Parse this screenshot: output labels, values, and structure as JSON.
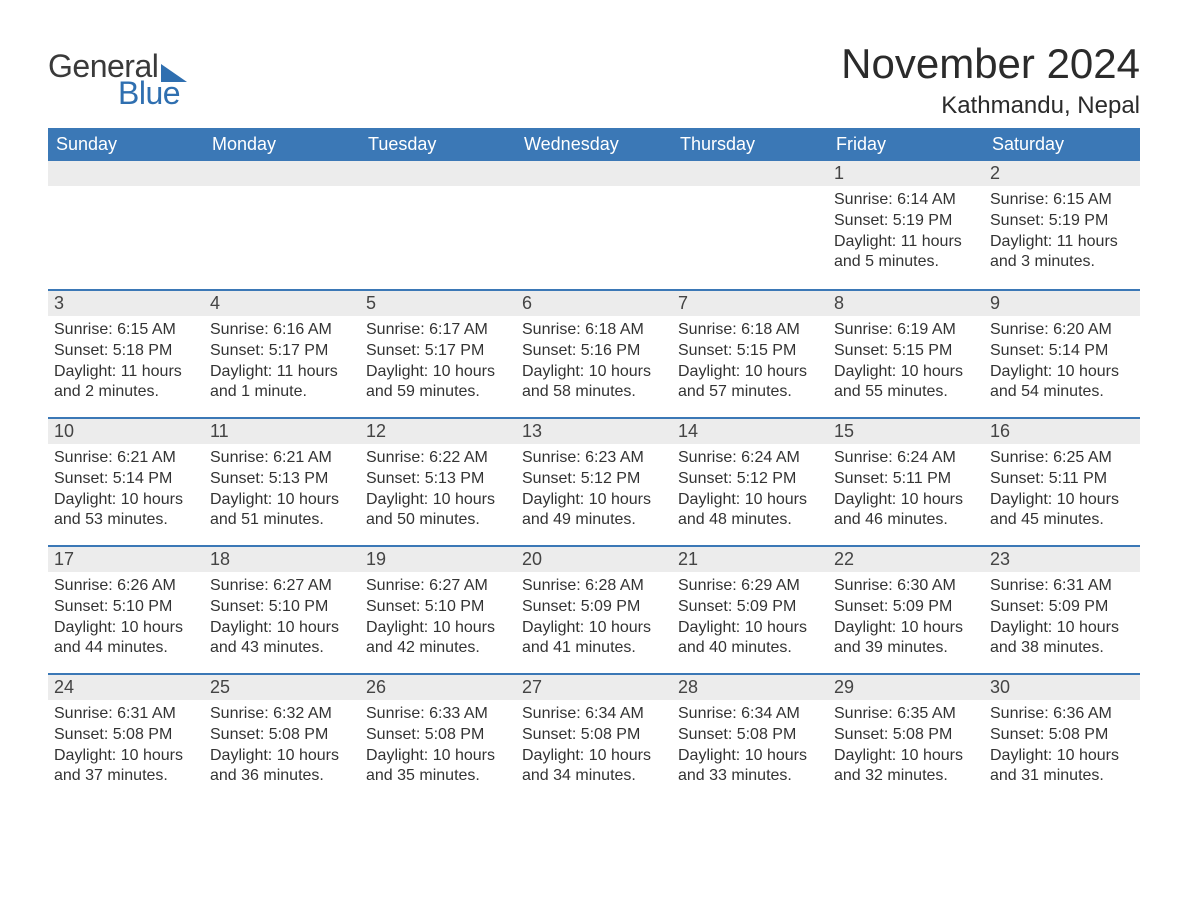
{
  "brand": {
    "word1": "General",
    "word2": "Blue",
    "accent_color": "#2f6fb0",
    "text_color": "#3a3a3a"
  },
  "title": "November 2024",
  "location": "Kathmandu, Nepal",
  "colors": {
    "header_bg": "#3b78b6",
    "header_text": "#ffffff",
    "daynum_bg": "#ececec",
    "daynum_text": "#444444",
    "body_text": "#333333",
    "row_divider": "#3b78b6",
    "page_bg": "#ffffff"
  },
  "typography": {
    "title_fontsize": 42,
    "location_fontsize": 24,
    "weekday_fontsize": 18,
    "daynum_fontsize": 18,
    "content_fontsize": 16
  },
  "weekdays": [
    "Sunday",
    "Monday",
    "Tuesday",
    "Wednesday",
    "Thursday",
    "Friday",
    "Saturday"
  ],
  "weeks": [
    [
      null,
      null,
      null,
      null,
      null,
      {
        "day": "1",
        "sunrise": "Sunrise: 6:14 AM",
        "sunset": "Sunset: 5:19 PM",
        "daylight1": "Daylight: 11 hours",
        "daylight2": "and 5 minutes."
      },
      {
        "day": "2",
        "sunrise": "Sunrise: 6:15 AM",
        "sunset": "Sunset: 5:19 PM",
        "daylight1": "Daylight: 11 hours",
        "daylight2": "and 3 minutes."
      }
    ],
    [
      {
        "day": "3",
        "sunrise": "Sunrise: 6:15 AM",
        "sunset": "Sunset: 5:18 PM",
        "daylight1": "Daylight: 11 hours",
        "daylight2": "and 2 minutes."
      },
      {
        "day": "4",
        "sunrise": "Sunrise: 6:16 AM",
        "sunset": "Sunset: 5:17 PM",
        "daylight1": "Daylight: 11 hours",
        "daylight2": "and 1 minute."
      },
      {
        "day": "5",
        "sunrise": "Sunrise: 6:17 AM",
        "sunset": "Sunset: 5:17 PM",
        "daylight1": "Daylight: 10 hours",
        "daylight2": "and 59 minutes."
      },
      {
        "day": "6",
        "sunrise": "Sunrise: 6:18 AM",
        "sunset": "Sunset: 5:16 PM",
        "daylight1": "Daylight: 10 hours",
        "daylight2": "and 58 minutes."
      },
      {
        "day": "7",
        "sunrise": "Sunrise: 6:18 AM",
        "sunset": "Sunset: 5:15 PM",
        "daylight1": "Daylight: 10 hours",
        "daylight2": "and 57 minutes."
      },
      {
        "day": "8",
        "sunrise": "Sunrise: 6:19 AM",
        "sunset": "Sunset: 5:15 PM",
        "daylight1": "Daylight: 10 hours",
        "daylight2": "and 55 minutes."
      },
      {
        "day": "9",
        "sunrise": "Sunrise: 6:20 AM",
        "sunset": "Sunset: 5:14 PM",
        "daylight1": "Daylight: 10 hours",
        "daylight2": "and 54 minutes."
      }
    ],
    [
      {
        "day": "10",
        "sunrise": "Sunrise: 6:21 AM",
        "sunset": "Sunset: 5:14 PM",
        "daylight1": "Daylight: 10 hours",
        "daylight2": "and 53 minutes."
      },
      {
        "day": "11",
        "sunrise": "Sunrise: 6:21 AM",
        "sunset": "Sunset: 5:13 PM",
        "daylight1": "Daylight: 10 hours",
        "daylight2": "and 51 minutes."
      },
      {
        "day": "12",
        "sunrise": "Sunrise: 6:22 AM",
        "sunset": "Sunset: 5:13 PM",
        "daylight1": "Daylight: 10 hours",
        "daylight2": "and 50 minutes."
      },
      {
        "day": "13",
        "sunrise": "Sunrise: 6:23 AM",
        "sunset": "Sunset: 5:12 PM",
        "daylight1": "Daylight: 10 hours",
        "daylight2": "and 49 minutes."
      },
      {
        "day": "14",
        "sunrise": "Sunrise: 6:24 AM",
        "sunset": "Sunset: 5:12 PM",
        "daylight1": "Daylight: 10 hours",
        "daylight2": "and 48 minutes."
      },
      {
        "day": "15",
        "sunrise": "Sunrise: 6:24 AM",
        "sunset": "Sunset: 5:11 PM",
        "daylight1": "Daylight: 10 hours",
        "daylight2": "and 46 minutes."
      },
      {
        "day": "16",
        "sunrise": "Sunrise: 6:25 AM",
        "sunset": "Sunset: 5:11 PM",
        "daylight1": "Daylight: 10 hours",
        "daylight2": "and 45 minutes."
      }
    ],
    [
      {
        "day": "17",
        "sunrise": "Sunrise: 6:26 AM",
        "sunset": "Sunset: 5:10 PM",
        "daylight1": "Daylight: 10 hours",
        "daylight2": "and 44 minutes."
      },
      {
        "day": "18",
        "sunrise": "Sunrise: 6:27 AM",
        "sunset": "Sunset: 5:10 PM",
        "daylight1": "Daylight: 10 hours",
        "daylight2": "and 43 minutes."
      },
      {
        "day": "19",
        "sunrise": "Sunrise: 6:27 AM",
        "sunset": "Sunset: 5:10 PM",
        "daylight1": "Daylight: 10 hours",
        "daylight2": "and 42 minutes."
      },
      {
        "day": "20",
        "sunrise": "Sunrise: 6:28 AM",
        "sunset": "Sunset: 5:09 PM",
        "daylight1": "Daylight: 10 hours",
        "daylight2": "and 41 minutes."
      },
      {
        "day": "21",
        "sunrise": "Sunrise: 6:29 AM",
        "sunset": "Sunset: 5:09 PM",
        "daylight1": "Daylight: 10 hours",
        "daylight2": "and 40 minutes."
      },
      {
        "day": "22",
        "sunrise": "Sunrise: 6:30 AM",
        "sunset": "Sunset: 5:09 PM",
        "daylight1": "Daylight: 10 hours",
        "daylight2": "and 39 minutes."
      },
      {
        "day": "23",
        "sunrise": "Sunrise: 6:31 AM",
        "sunset": "Sunset: 5:09 PM",
        "daylight1": "Daylight: 10 hours",
        "daylight2": "and 38 minutes."
      }
    ],
    [
      {
        "day": "24",
        "sunrise": "Sunrise: 6:31 AM",
        "sunset": "Sunset: 5:08 PM",
        "daylight1": "Daylight: 10 hours",
        "daylight2": "and 37 minutes."
      },
      {
        "day": "25",
        "sunrise": "Sunrise: 6:32 AM",
        "sunset": "Sunset: 5:08 PM",
        "daylight1": "Daylight: 10 hours",
        "daylight2": "and 36 minutes."
      },
      {
        "day": "26",
        "sunrise": "Sunrise: 6:33 AM",
        "sunset": "Sunset: 5:08 PM",
        "daylight1": "Daylight: 10 hours",
        "daylight2": "and 35 minutes."
      },
      {
        "day": "27",
        "sunrise": "Sunrise: 6:34 AM",
        "sunset": "Sunset: 5:08 PM",
        "daylight1": "Daylight: 10 hours",
        "daylight2": "and 34 minutes."
      },
      {
        "day": "28",
        "sunrise": "Sunrise: 6:34 AM",
        "sunset": "Sunset: 5:08 PM",
        "daylight1": "Daylight: 10 hours",
        "daylight2": "and 33 minutes."
      },
      {
        "day": "29",
        "sunrise": "Sunrise: 6:35 AM",
        "sunset": "Sunset: 5:08 PM",
        "daylight1": "Daylight: 10 hours",
        "daylight2": "and 32 minutes."
      },
      {
        "day": "30",
        "sunrise": "Sunrise: 6:36 AM",
        "sunset": "Sunset: 5:08 PM",
        "daylight1": "Daylight: 10 hours",
        "daylight2": "and 31 minutes."
      }
    ]
  ]
}
